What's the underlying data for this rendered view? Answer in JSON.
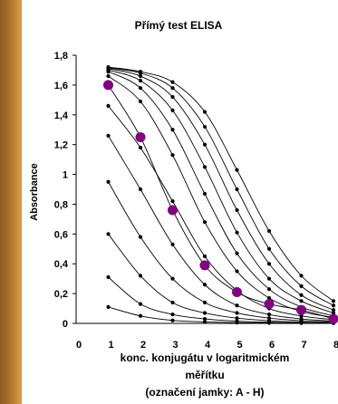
{
  "chart_data": {
    "type": "line",
    "title": "Přímý test ELISA",
    "ylabel": "Absorbance",
    "xlabel_lines": [
      "konc. konjugátu v logaritmickém",
      "měřítku",
      "(označení jamky: A - H)"
    ],
    "xlim": [
      0,
      8
    ],
    "ylim": [
      0,
      1.8
    ],
    "x_ticks": [
      0,
      1,
      2,
      3,
      4,
      5,
      6,
      7,
      8
    ],
    "y_ticks": [
      0,
      0.2,
      0.4,
      0.6,
      0.8,
      1,
      1.2,
      1.4,
      1.6,
      1.8
    ],
    "y_tick_labels": [
      "0",
      "0,2",
      "0,4",
      "0,6",
      "0,8",
      "1",
      "1,2",
      "1,4",
      "1,6",
      "1,8"
    ],
    "grid": false,
    "legend": "none",
    "colors": {
      "line": "#000000",
      "point": "#000000",
      "highlight": "#800080"
    },
    "x": [
      1,
      2,
      3,
      4,
      5,
      6,
      7,
      8
    ],
    "series": [
      {
        "values": [
          0.11,
          0.05,
          0.02,
          0.01,
          0.005,
          0.003,
          0.002,
          0.001
        ]
      },
      {
        "values": [
          0.31,
          0.13,
          0.06,
          0.03,
          0.015,
          0.008,
          0.004,
          0.002
        ]
      },
      {
        "values": [
          0.6,
          0.32,
          0.14,
          0.07,
          0.035,
          0.018,
          0.009,
          0.005
        ]
      },
      {
        "values": [
          0.95,
          0.58,
          0.3,
          0.14,
          0.07,
          0.035,
          0.018,
          0.009
        ]
      },
      {
        "values": [
          1.26,
          0.9,
          0.53,
          0.26,
          0.12,
          0.06,
          0.03,
          0.015
        ]
      },
      {
        "values": [
          1.46,
          1.18,
          0.82,
          0.45,
          0.22,
          0.1,
          0.05,
          0.025
        ]
      },
      {
        "values": [
          1.6,
          1.25,
          0.76,
          0.39,
          0.21,
          0.13,
          0.09,
          0.03
        ],
        "highlight": true
      },
      {
        "values": [
          1.66,
          1.49,
          1.13,
          0.68,
          0.35,
          0.17,
          0.08,
          0.04
        ]
      },
      {
        "values": [
          1.69,
          1.58,
          1.3,
          0.87,
          0.47,
          0.23,
          0.11,
          0.05
        ]
      },
      {
        "values": [
          1.7,
          1.63,
          1.43,
          1.05,
          0.61,
          0.3,
          0.15,
          0.07
        ]
      },
      {
        "values": [
          1.71,
          1.66,
          1.52,
          1.2,
          0.76,
          0.4,
          0.19,
          0.09
        ]
      },
      {
        "values": [
          1.715,
          1.68,
          1.58,
          1.32,
          0.9,
          0.5,
          0.25,
          0.12
        ]
      },
      {
        "values": [
          1.72,
          1.69,
          1.62,
          1.42,
          1.03,
          0.62,
          0.32,
          0.15
        ]
      }
    ]
  }
}
